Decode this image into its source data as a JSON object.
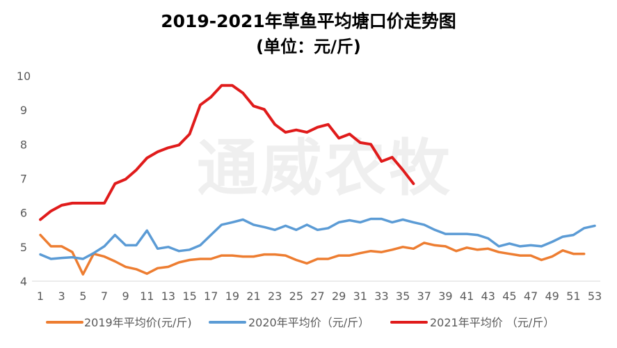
{
  "chart_data": {
    "type": "line",
    "title": "2019-2021年草鱼平均塘口价走势图",
    "subtitle": "(单位：元/斤)",
    "watermark": "通威农牧",
    "x": [
      1,
      2,
      3,
      4,
      5,
      6,
      7,
      8,
      9,
      10,
      11,
      12,
      13,
      14,
      15,
      16,
      17,
      18,
      19,
      20,
      21,
      22,
      23,
      24,
      25,
      26,
      27,
      28,
      29,
      30,
      31,
      32,
      33,
      34,
      35,
      36,
      37,
      38,
      39,
      40,
      41,
      42,
      43,
      44,
      45,
      46,
      47,
      48,
      49,
      50,
      51,
      52,
      53
    ],
    "x_tick_labels": [
      "1",
      "3",
      "5",
      "7",
      "9",
      "11",
      "13",
      "15",
      "17",
      "19",
      "21",
      "23",
      "25",
      "27",
      "29",
      "31",
      "33",
      "35",
      "37",
      "39",
      "41",
      "43",
      "45",
      "47",
      "49",
      "51",
      "53"
    ],
    "ylim": [
      4,
      10
    ],
    "y_tick_labels": [
      "4",
      "5",
      "6",
      "7",
      "8",
      "9",
      "10"
    ],
    "grid": false,
    "legend_position": "bottom",
    "series": [
      {
        "name": "2019年平均价(元/斤)",
        "color": "#ED7D31",
        "values": [
          5.35,
          5.02,
          5.02,
          4.85,
          4.2,
          4.8,
          4.72,
          4.58,
          4.42,
          4.35,
          4.22,
          4.38,
          4.42,
          4.55,
          4.62,
          4.65,
          4.65,
          4.75,
          4.75,
          4.72,
          4.72,
          4.78,
          4.78,
          4.75,
          4.62,
          4.52,
          4.65,
          4.65,
          4.75,
          4.75,
          4.82,
          4.88,
          4.85,
          4.92,
          5.0,
          4.95,
          5.12,
          5.05,
          5.02,
          4.88,
          4.98,
          4.92,
          4.95,
          4.85,
          4.8,
          4.75,
          4.75,
          4.62,
          4.72,
          4.9,
          4.8,
          4.8,
          null
        ]
      },
      {
        "name": "2020年平均价（元/斤）",
        "color": "#5B9BD5",
        "values": [
          4.78,
          4.65,
          4.68,
          4.7,
          4.65,
          4.82,
          5.02,
          5.35,
          5.05,
          5.05,
          5.48,
          4.95,
          5.0,
          4.88,
          4.92,
          5.05,
          5.35,
          5.65,
          5.72,
          5.8,
          5.65,
          5.58,
          5.5,
          5.62,
          5.5,
          5.65,
          5.5,
          5.55,
          5.72,
          5.78,
          5.72,
          5.82,
          5.82,
          5.72,
          5.8,
          5.72,
          5.65,
          5.5,
          5.38,
          5.38,
          5.38,
          5.35,
          5.25,
          5.02,
          5.1,
          5.02,
          5.05,
          5.02,
          5.15,
          5.3,
          5.35,
          5.55,
          5.62
        ]
      },
      {
        "name": "2021年平均价 （元/斤）",
        "color": "#E01B1B",
        "values": [
          5.8,
          6.05,
          6.22,
          6.28,
          6.28,
          6.28,
          6.28,
          6.85,
          6.98,
          7.25,
          7.6,
          7.78,
          7.9,
          7.98,
          8.3,
          9.15,
          9.38,
          9.72,
          9.72,
          9.5,
          9.12,
          9.02,
          8.58,
          8.35,
          8.42,
          8.35,
          8.5,
          8.58,
          8.18,
          8.3,
          8.05,
          8.0,
          7.5,
          7.62,
          7.25,
          6.85,
          null,
          null,
          null,
          null,
          null,
          null,
          null,
          null,
          null,
          null,
          null,
          null,
          null,
          null,
          null,
          null,
          null
        ]
      }
    ]
  }
}
